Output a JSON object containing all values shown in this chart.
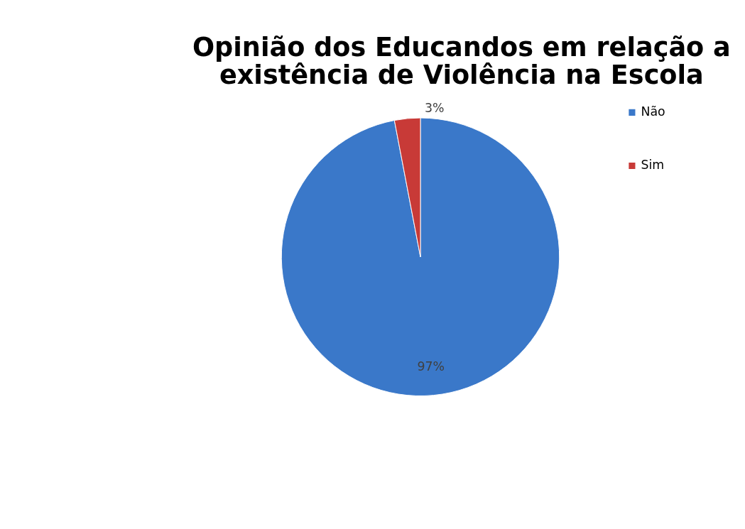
{
  "chart_data": {
    "type": "pie",
    "title": [
      "Opinião dos Educandos em relação a",
      "existência de Violência na Escola"
    ],
    "categories": [
      "Não",
      "Sim"
    ],
    "values": [
      97,
      3
    ],
    "colors": [
      "#3a78c9",
      "#c83a37"
    ],
    "value_labels": [
      "97%",
      "3%"
    ],
    "legend": "right"
  }
}
